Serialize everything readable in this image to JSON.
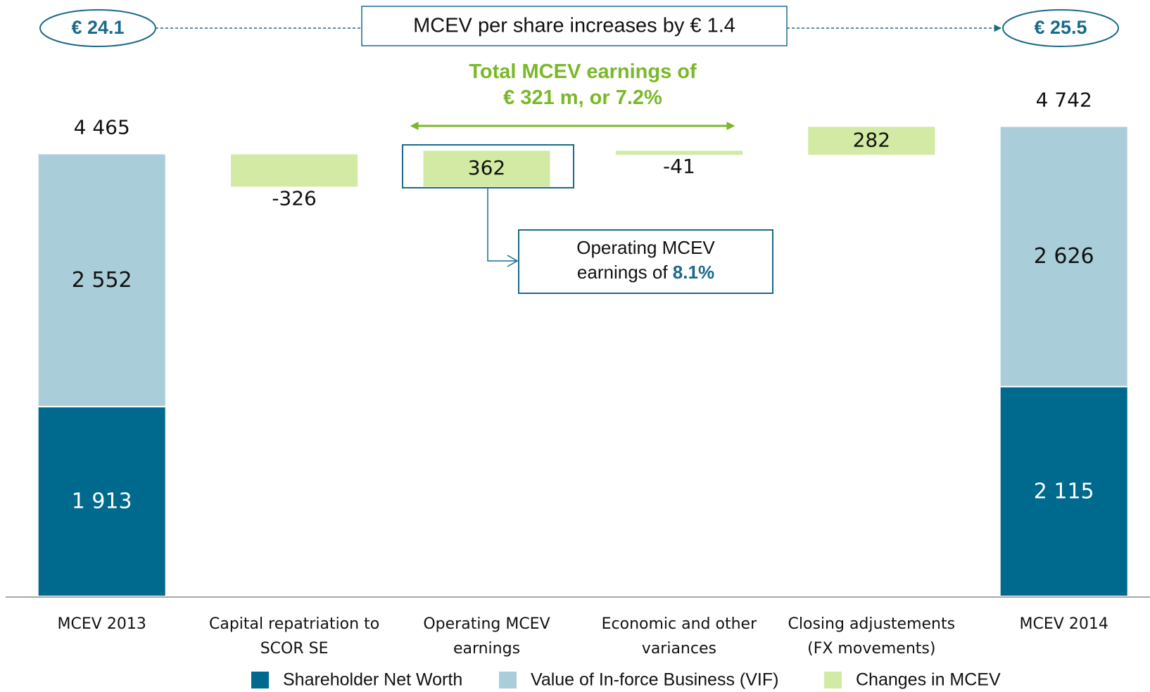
{
  "chart_data": {
    "type": "waterfall",
    "categories": [
      "MCEV 2013",
      "Capital repatriation to\nSCOR SE",
      "Operating MCEV\nearnings",
      "Economic and other\nvariances",
      "Closing adjustements\n(FX movements)",
      "MCEV 2014"
    ],
    "series": [
      {
        "name": "Shareholder Net Worth",
        "color": "#006a8e",
        "values": [
          1913,
          null,
          null,
          null,
          null,
          2115
        ],
        "value_labels": [
          "1 913",
          null,
          null,
          null,
          null,
          "2 115"
        ]
      },
      {
        "name": "Value of In-force Business (VIF)",
        "color": "#a9cdd9",
        "values": [
          2552,
          null,
          null,
          null,
          null,
          2626
        ],
        "value_labels": [
          "2 552",
          null,
          null,
          null,
          null,
          "2 626"
        ]
      },
      {
        "name": "Changes in MCEV",
        "color": "#d2eaa3",
        "values": [
          null,
          -326,
          362,
          -41,
          282,
          null
        ]
      }
    ],
    "totals": [
      4465,
      null,
      null,
      null,
      null,
      4742
    ],
    "total_labels": [
      "4 465",
      null,
      null,
      null,
      null,
      "4 742"
    ],
    "ylim": [
      0,
      5000
    ],
    "start_label": "€ 24.1",
    "end_label": "€ 25.5",
    "headline": "MCEV per share increases by € 1.4",
    "total_earnings": "Total MCEV earnings of\n€ 321 m, or 7.2%",
    "operating_note": {
      "text": "Operating MCEV\nearnings of ",
      "highlight": "8.1%"
    }
  }
}
